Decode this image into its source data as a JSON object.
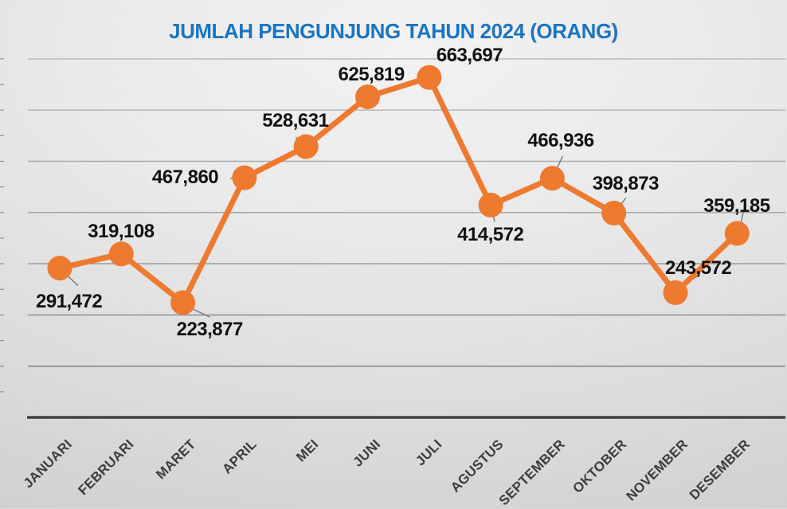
{
  "title": "JUMLAH PENGUNJUNG TAHUN 2024 (ORANG)",
  "chart_data": {
    "type": "line",
    "title": "JUMLAH PENGUNJUNG TAHUN 2024 (ORANG)",
    "categories": [
      "JANUARI",
      "FEBRUARI",
      "MARET",
      "APRIL",
      "MEI",
      "JUNI",
      "JULI",
      "AGUSTUS",
      "SEPTEMBER",
      "OKTOBER",
      "NOVEMBER",
      "DESEMBER"
    ],
    "values": [
      291472,
      319108,
      223877,
      467860,
      528631,
      625819,
      663697,
      414572,
      466936,
      398873,
      243572,
      359185
    ],
    "data_labels": [
      "291,472",
      "319,108",
      "223,877",
      "467,860",
      "528,631",
      "625,819",
      "663,697",
      "414,572",
      "466,936",
      "398,873",
      "243,572",
      "359,185"
    ],
    "xlabel": "",
    "ylabel": "",
    "ylim": [
      0,
      700000
    ],
    "gridline_interval": 100000,
    "grid": true,
    "legend_position": "none",
    "marker": "circle",
    "colors": {
      "series": "#ED7A2F",
      "title": "#1B75C0",
      "data_label": "#121212",
      "axis_label": "#3D3D3D",
      "axis_line": "#404040",
      "leader_line": "#7F7F7F",
      "gridline_light": "#B7B7B7",
      "gridline_dark": "#7A7A7A"
    }
  }
}
